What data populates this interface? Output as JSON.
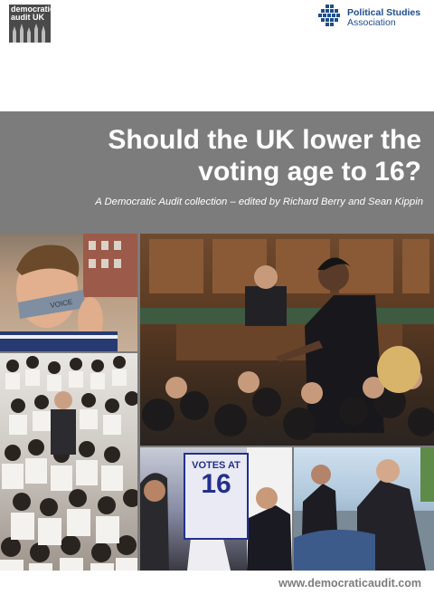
{
  "header": {
    "da_logo_text": "democratic audit UK",
    "psa_logo_line1": "Political Studies",
    "psa_logo_line2": "Association"
  },
  "cover": {
    "title_line1": "Should the UK lower the",
    "title_line2": "voting age to 16?",
    "subtitle": "A Democratic Audit collection – edited by Richard Berry and Sean Kippin"
  },
  "photos": {
    "gag_text": "VOICE",
    "sign_line1": "VOTES AT",
    "sign_line2": "16"
  },
  "footer": {
    "url": "www.democraticaudit.com"
  },
  "colors": {
    "band": "#7c7c7c",
    "psa_blue": "#1f4e8c",
    "sign_blue": "#23308c"
  }
}
